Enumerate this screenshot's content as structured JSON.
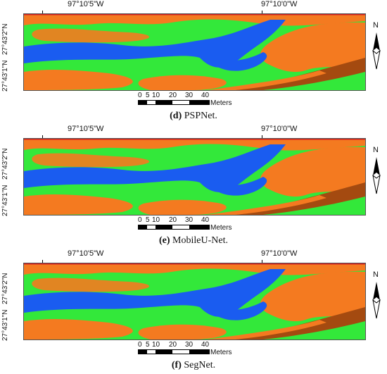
{
  "coords": {
    "lon_left": "97°10'5\"W",
    "lon_right": "97°10'0\"W",
    "lat_top": "27°43'2\"N",
    "lat_bottom": "27°43'1\"N"
  },
  "north_label": "N",
  "scale": {
    "ticks": [
      "0",
      "5",
      "10",
      "20",
      "30",
      "40"
    ],
    "unit": "Meters"
  },
  "panels": [
    {
      "letter": "(d)",
      "name": "PSPNet."
    },
    {
      "letter": "(e)",
      "name": "MobileU-Net."
    },
    {
      "letter": "(f)",
      "name": "SegNet."
    }
  ],
  "colors": {
    "green": "#33e83a",
    "orange": "#f47a20",
    "blue": "#1a5cf0",
    "brown": "#a44a10",
    "frame_top": "#d32020"
  }
}
